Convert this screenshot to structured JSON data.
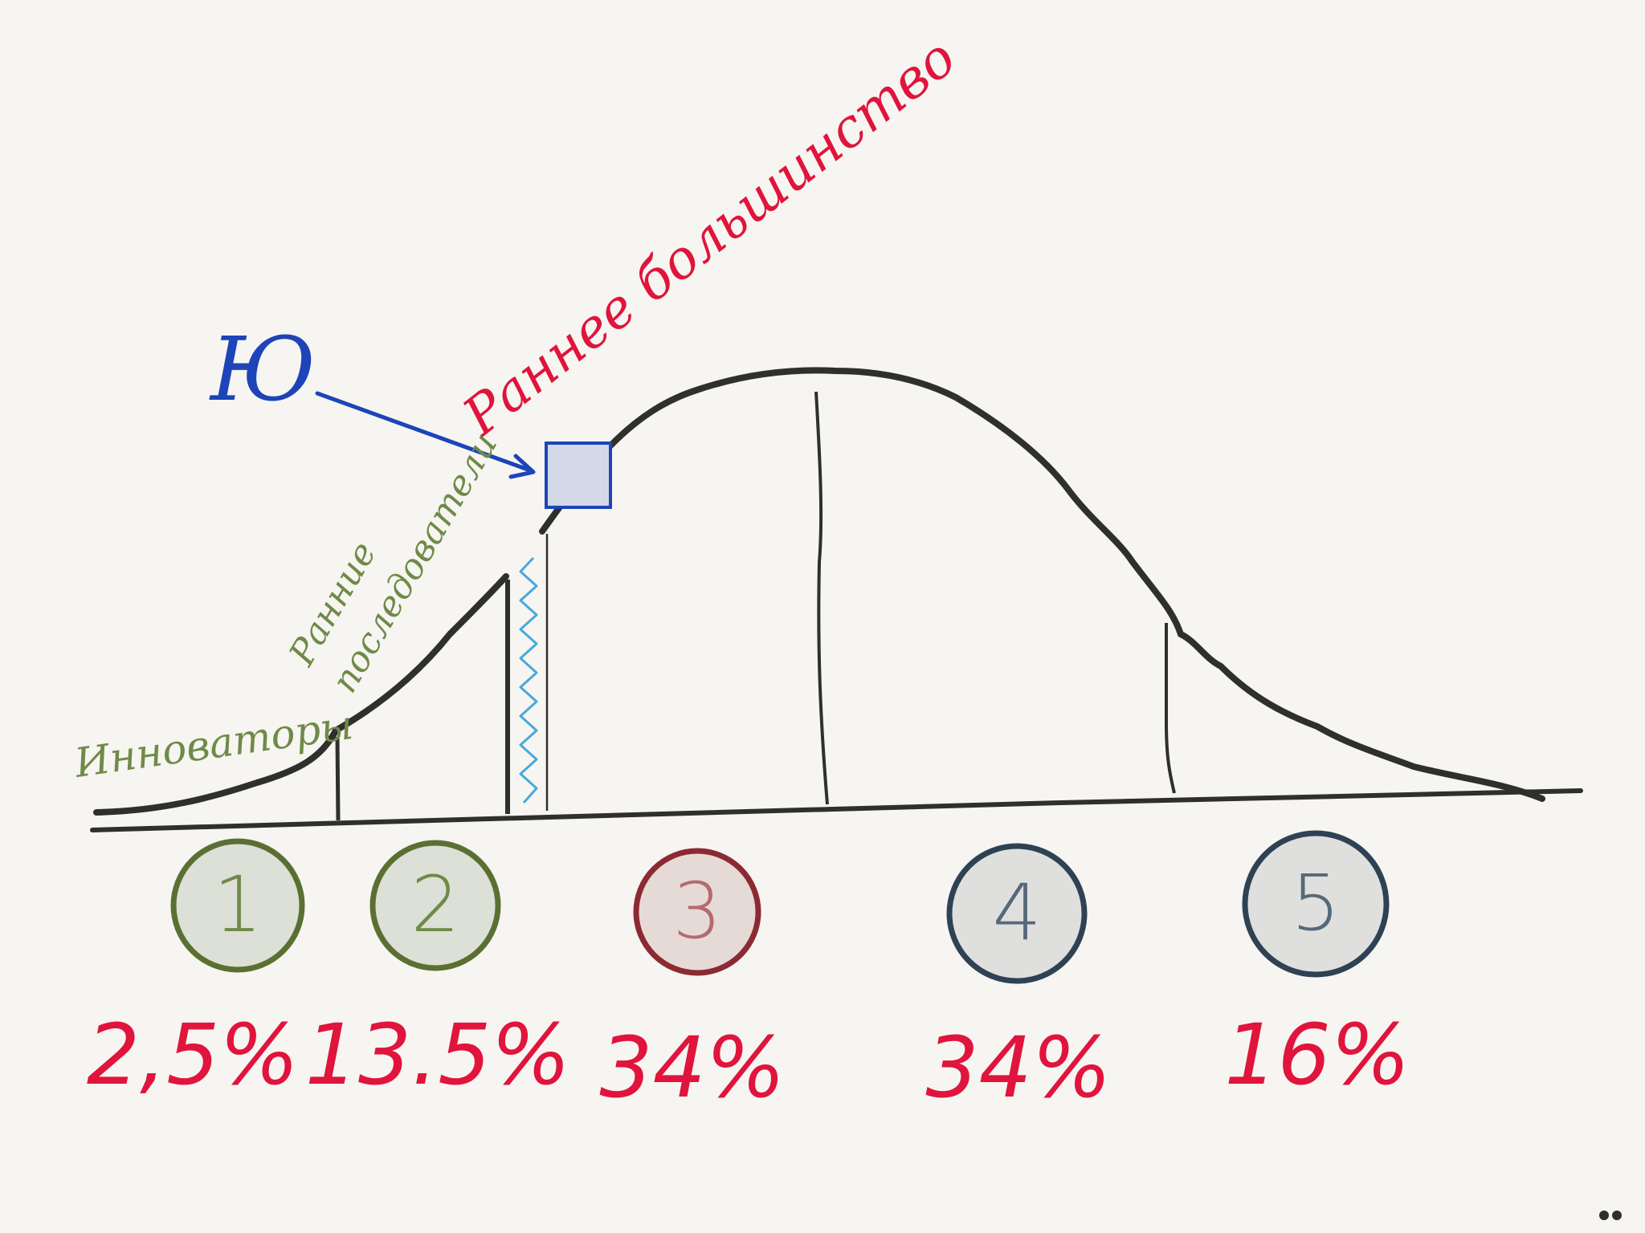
{
  "labels": {
    "you": "Ю",
    "early_majority": "Раннее большинство",
    "early_adopters_line1": "Ранние",
    "early_adopters_line2": "последователи",
    "innovators": "Инноваторы"
  },
  "segments": [
    {
      "number": "1",
      "percent": "2,5%",
      "fill": "#dde0d6",
      "stroke": "#5a7032",
      "text": "#6f8a48"
    },
    {
      "number": "2",
      "percent": "13.5%",
      "fill": "#dde0d6",
      "stroke": "#5a7032",
      "text": "#6f8a48"
    },
    {
      "number": "3",
      "percent": "34%",
      "fill": "#e6dad6",
      "stroke": "#8b2a33",
      "text": "#b46a70"
    },
    {
      "number": "4",
      "percent": "34%",
      "fill": "#dfe0dd",
      "stroke": "#2e4254",
      "text": "#56697a"
    },
    {
      "number": "5",
      "percent": "16%",
      "fill": "#dfe0dd",
      "stroke": "#2e4254",
      "text": "#56697a"
    }
  ],
  "colors": {
    "curve": "#2f2f2c",
    "label_green": "#6f8a48",
    "label_red": "#e0143c",
    "label_blue": "#1d44b8",
    "marker_fill": "#d3d9e6",
    "hatch": "#4aa8dc"
  },
  "icons": {
    "menu": "more-dots-icon"
  }
}
